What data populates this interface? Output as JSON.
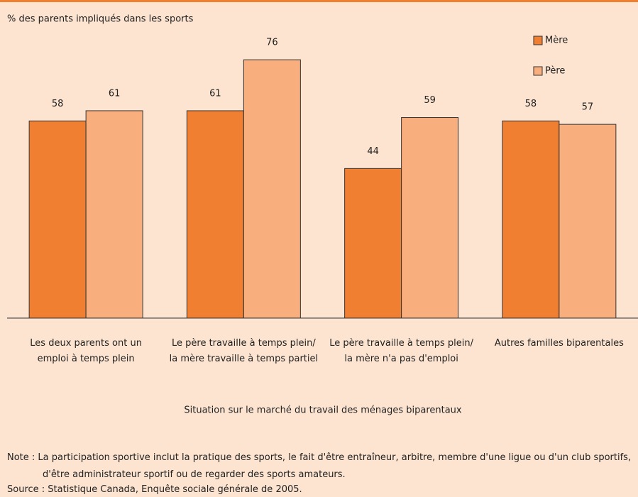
{
  "chart_data": {
    "type": "bar",
    "title": "% des parents impliqués dans les sports",
    "x_label": "Situation sur le marché du travail des ménages biparentaux",
    "categories": [
      "Les deux parents ont un\nemploi à temps plein",
      "Le père travaille à temps plein/\nla mère travaille à temps partiel",
      "Le père travaille à temps plein/\nla mère n'a pas d'emploi",
      "Autres familles biparentales"
    ],
    "series": [
      {
        "name": "Mère",
        "color": "#f07f32",
        "values": [
          58,
          61,
          44,
          58
        ]
      },
      {
        "name": "Père",
        "color": "#f9ae7d",
        "values": [
          61,
          76,
          59,
          57
        ]
      }
    ],
    "ylim": [
      0,
      80
    ],
    "legend": "top-right",
    "note": "Note : La participation sportive inclut la pratique des sports, le fait d'être entraîneur, arbitre, membre d'une ligue ou d'un club sportifs, d'être administrateur sportif ou de regarder des sports amateurs.",
    "source": "Source : Statistique Canada, Enquête sociale générale de 2005."
  }
}
